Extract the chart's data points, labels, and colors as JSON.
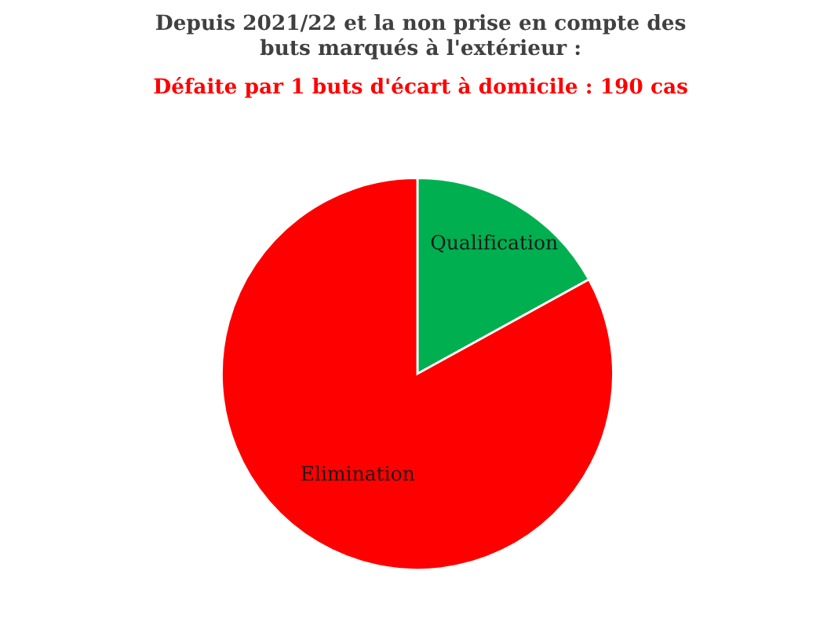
{
  "chart_data": {
    "type": "pie",
    "title": "Depuis 2021/22 et la non prise en compte des\nbuts marqués à l'extérieur :",
    "subtitle": "Défaite par 1 buts d'écart à domicile : 190 cas",
    "categories": [
      "Qualification",
      "Elimination"
    ],
    "values": [
      17,
      83
    ],
    "colors": [
      "#00b050",
      "#fe0000"
    ]
  }
}
